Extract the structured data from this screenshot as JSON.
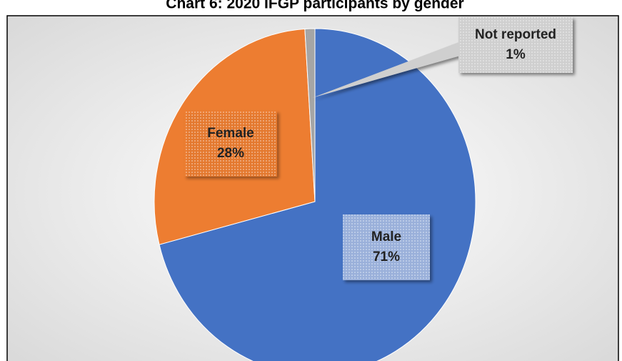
{
  "chart_data": {
    "type": "pie",
    "title": "Chart 6: 2020 IFGP participants by gender",
    "categories": [
      "Male",
      "Female",
      "Not reported"
    ],
    "values": [
      71,
      28,
      1
    ],
    "value_labels": [
      "71%",
      "28%",
      "1%"
    ],
    "colors": [
      "#4472c4",
      "#ed7d31",
      "#a5a5a5"
    ]
  }
}
